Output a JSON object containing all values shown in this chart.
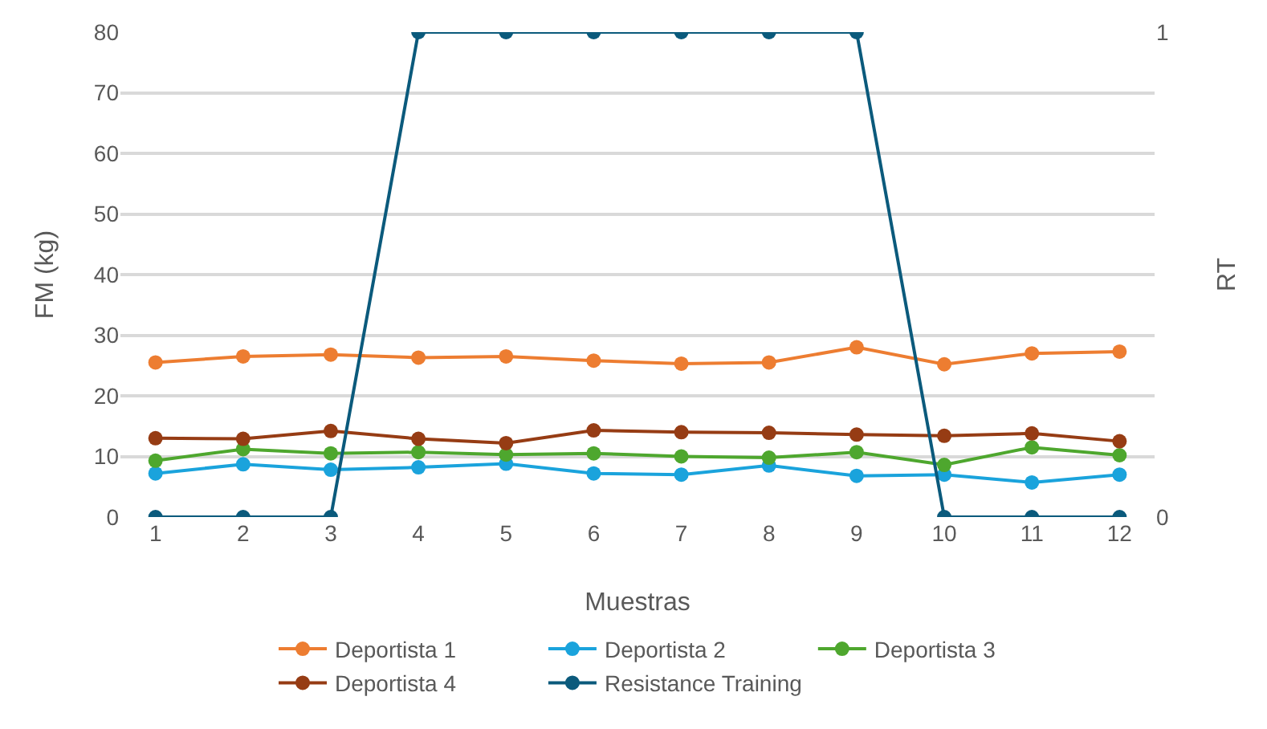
{
  "chart_data": {
    "type": "line",
    "xlabel": "Muestras",
    "ylabel": "FM (kg)",
    "y2label": "RT",
    "x": [
      1,
      2,
      3,
      4,
      5,
      6,
      7,
      8,
      9,
      10,
      11,
      12
    ],
    "xlim": [
      0.6,
      12.4
    ],
    "xticks": [
      1,
      2,
      3,
      4,
      5,
      6,
      7,
      8,
      9,
      10,
      11,
      12
    ],
    "ylim": [
      0,
      80
    ],
    "yticks": [
      0,
      10,
      20,
      30,
      40,
      50,
      60,
      70,
      80
    ],
    "y2lim": [
      0,
      1
    ],
    "y2ticks": [
      0,
      1
    ],
    "grid": "y",
    "legend": "bottom",
    "marker": "circle",
    "line_style": "solid",
    "series": [
      {
        "name": "Deportista 1",
        "color": "#ed7d31",
        "values": [
          25.5,
          26.5,
          26.8,
          26.3,
          26.5,
          25.8,
          25.3,
          25.5,
          28,
          25.2,
          27,
          27.3
        ]
      },
      {
        "name": "Deportista 2",
        "color": "#1aa3dc",
        "values": [
          7.2,
          8.7,
          7.8,
          8.2,
          8.8,
          7.2,
          7,
          8.5,
          6.8,
          7,
          5.7,
          7
        ]
      },
      {
        "name": "Deportista 3",
        "color": "#4ea72e",
        "values": [
          9.3,
          11.2,
          10.5,
          10.7,
          10.3,
          10.5,
          10,
          9.8,
          10.7,
          8.6,
          11.5,
          10.2
        ]
      },
      {
        "name": "Deportista 4",
        "color": "#963c14",
        "values": [
          13,
          12.9,
          14.2,
          12.9,
          12.2,
          14.3,
          14,
          13.9,
          13.6,
          13.4,
          13.8,
          12.5
        ]
      },
      {
        "name": "Resistance Training",
        "color": "#0b5a7c",
        "axis": "y2",
        "values": [
          0,
          0,
          0,
          1,
          1,
          1,
          1,
          1,
          1,
          0,
          0,
          0
        ]
      }
    ]
  }
}
